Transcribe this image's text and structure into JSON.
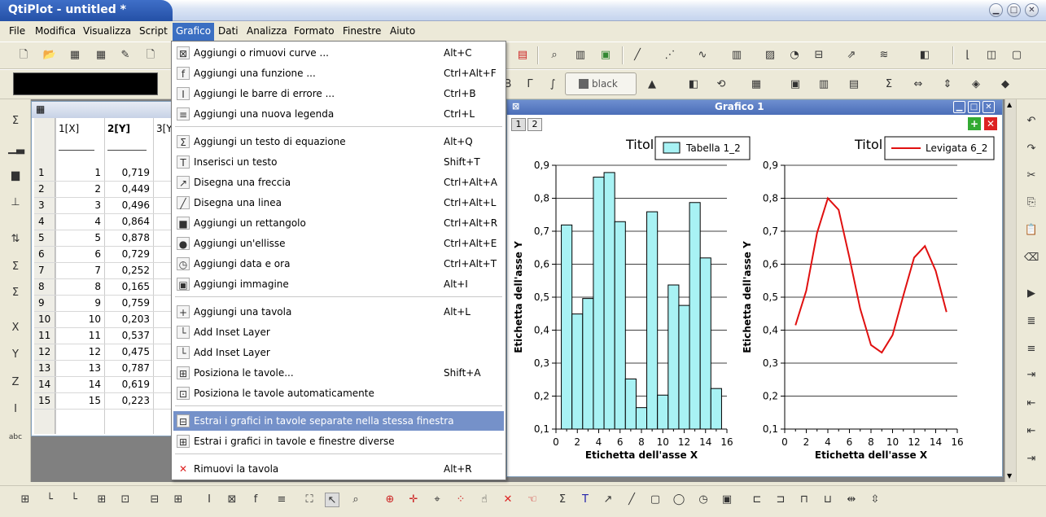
{
  "window": {
    "title": "QtiPlot - untitled *"
  },
  "menubar": [
    "File",
    "Modifica",
    "Visualizza",
    "Script",
    "Grafico",
    "Dati",
    "Analizza",
    "Formato",
    "Finestre",
    "Aiuto"
  ],
  "format_toolbar": {
    "color_button": "black"
  },
  "table": {
    "headers": [
      "1[X]",
      "2[Y]",
      "3[Y"
    ],
    "rows": [
      {
        "n": "1",
        "x": "1",
        "y": "0,719"
      },
      {
        "n": "2",
        "x": "2",
        "y": "0,449"
      },
      {
        "n": "3",
        "x": "3",
        "y": "0,496"
      },
      {
        "n": "4",
        "x": "4",
        "y": "0,864"
      },
      {
        "n": "5",
        "x": "5",
        "y": "0,878"
      },
      {
        "n": "6",
        "x": "6",
        "y": "0,729"
      },
      {
        "n": "7",
        "x": "7",
        "y": "0,252"
      },
      {
        "n": "8",
        "x": "8",
        "y": "0,165"
      },
      {
        "n": "9",
        "x": "9",
        "y": "0,759"
      },
      {
        "n": "10",
        "x": "10",
        "y": "0,203"
      },
      {
        "n": "11",
        "x": "11",
        "y": "0,537"
      },
      {
        "n": "12",
        "x": "12",
        "y": "0,475"
      },
      {
        "n": "13",
        "x": "13",
        "y": "0,787"
      },
      {
        "n": "14",
        "x": "14",
        "y": "0,619"
      },
      {
        "n": "15",
        "x": "15",
        "y": "0,223"
      }
    ]
  },
  "dropdown": {
    "items": [
      {
        "label": "Aggiungi o rimuovi curve ...",
        "shortcut": "Alt+C",
        "icon": "curves-icon",
        "glyph": "⊠"
      },
      {
        "label": "Aggiungi una funzione ...",
        "shortcut": "Ctrl+Alt+F",
        "icon": "function-icon",
        "glyph": "f"
      },
      {
        "label": "Aggiungi le barre di errore ...",
        "shortcut": "Ctrl+B",
        "icon": "error-bars-icon",
        "glyph": "I"
      },
      {
        "label": "Aggiungi una nuova legenda",
        "shortcut": "Ctrl+L",
        "icon": "legend-icon",
        "glyph": "≡"
      },
      {
        "label": "Aggiungi un testo di equazione",
        "shortcut": "Alt+Q",
        "icon": "sigma-icon",
        "glyph": "Σ"
      },
      {
        "label": "Inserisci un testo",
        "shortcut": "Shift+T",
        "icon": "text-icon",
        "glyph": "T"
      },
      {
        "label": "Disegna una freccia",
        "shortcut": "Ctrl+Alt+A",
        "icon": "arrow-icon",
        "glyph": "↗"
      },
      {
        "label": "Disegna una linea",
        "shortcut": "Ctrl+Alt+L",
        "icon": "line-icon",
        "glyph": "╱"
      },
      {
        "label": "Aggiungi un rettangolo",
        "shortcut": "Ctrl+Alt+R",
        "icon": "rectangle-icon",
        "glyph": "■"
      },
      {
        "label": "Aggiungi un'ellisse",
        "shortcut": "Ctrl+Alt+E",
        "icon": "ellipse-icon",
        "glyph": "●"
      },
      {
        "label": "Aggiungi data e ora",
        "shortcut": "Ctrl+Alt+T",
        "icon": "clock-icon",
        "glyph": "◷"
      },
      {
        "label": "Aggiungi immagine",
        "shortcut": "Alt+I",
        "icon": "image-icon",
        "glyph": "▣"
      },
      {
        "label": "Aggiungi una tavola",
        "shortcut": "Alt+L",
        "icon": "add-layer-icon",
        "glyph": "+"
      },
      {
        "label": "Add Inset Layer",
        "shortcut": "",
        "icon": "inset-layer-icon",
        "glyph": "└"
      },
      {
        "label": "Add Inset Layer",
        "shortcut": "",
        "icon": "inset-layer-2-icon",
        "glyph": "└"
      },
      {
        "label": "Posiziona le tavole...",
        "shortcut": "Shift+A",
        "icon": "arrange-layers-icon",
        "glyph": "⊞"
      },
      {
        "label": "Posiziona le tavole automaticamente",
        "shortcut": "",
        "icon": "auto-layers-icon",
        "glyph": "⊡"
      },
      {
        "label": "Estrai i grafici in tavole separate nella stessa finestra",
        "shortcut": "",
        "icon": "extract-layers-icon",
        "glyph": "⊟"
      },
      {
        "label": "Estrai i grafici in tavole e finestre diverse",
        "shortcut": "",
        "icon": "extract-windows-icon",
        "glyph": "⊞"
      },
      {
        "label": "Rimuovi la tavola",
        "shortcut": "Alt+R",
        "icon": "remove-layer-icon",
        "glyph": "✕"
      }
    ]
  },
  "graph": {
    "window_title": "Grafico 1",
    "layer_buttons": [
      "1",
      "2"
    ],
    "left": {
      "title": "Titol",
      "legend": "Tabella 1_2",
      "xlabel": "Etichetta dell'asse X",
      "ylabel": "Etichetta dell'asse Y"
    },
    "right": {
      "title": "Titol",
      "legend": "Levigata 6_2",
      "xlabel": "Etichetta dell'asse X",
      "ylabel": "Etichetta dell'asse Y"
    }
  },
  "chart_data": [
    {
      "type": "bar",
      "legend": "Tabella 1_2",
      "x": [
        1,
        2,
        3,
        4,
        5,
        6,
        7,
        8,
        9,
        10,
        11,
        12,
        13,
        14,
        15
      ],
      "values": [
        0.719,
        0.449,
        0.496,
        0.864,
        0.878,
        0.729,
        0.252,
        0.165,
        0.759,
        0.203,
        0.537,
        0.475,
        0.787,
        0.619,
        0.223
      ],
      "xlim": [
        0,
        16
      ],
      "ylim": [
        0.1,
        0.9
      ],
      "xticks": [
        "0",
        "2",
        "4",
        "6",
        "8",
        "10",
        "12",
        "14",
        "16"
      ],
      "yticks": [
        "0,1",
        "0,2",
        "0,3",
        "0,4",
        "0,5",
        "0,6",
        "0,7",
        "0,8",
        "0,9"
      ],
      "bar_color": "#a8f2f4",
      "grid": true
    },
    {
      "type": "line",
      "legend": "Levigata 6_2",
      "x": [
        1,
        2,
        3,
        4,
        5,
        6,
        7,
        8,
        9,
        10,
        11,
        12,
        13,
        14,
        15
      ],
      "values": [
        0.415,
        0.52,
        0.695,
        0.8,
        0.765,
        0.62,
        0.465,
        0.355,
        0.332,
        0.385,
        0.505,
        0.62,
        0.655,
        0.58,
        0.455
      ],
      "xlim": [
        0,
        16
      ],
      "ylim": [
        0.1,
        0.9
      ],
      "xticks": [
        "0",
        "2",
        "4",
        "6",
        "8",
        "10",
        "12",
        "14",
        "16"
      ],
      "yticks": [
        "0,1",
        "0,2",
        "0,3",
        "0,4",
        "0,5",
        "0,6",
        "0,7",
        "0,8",
        "0,9"
      ],
      "line_color": "#e01010",
      "grid": true
    }
  ]
}
